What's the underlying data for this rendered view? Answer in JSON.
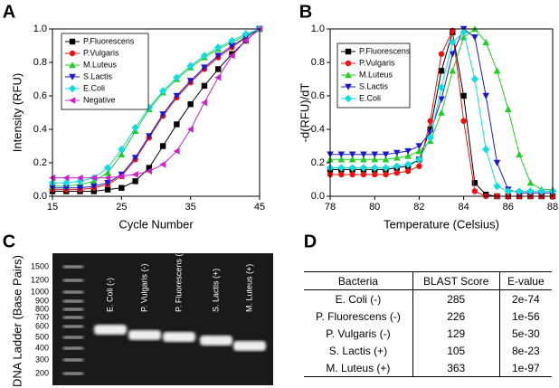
{
  "chart_data": [
    {
      "type": "line",
      "panel_label": "A",
      "xlabel": "Cycle Number",
      "ylabel": "Intensity (RFU)",
      "x": [
        15,
        17,
        19,
        21,
        23,
        25,
        27,
        29,
        31,
        33,
        35,
        37,
        39,
        41,
        43,
        45
      ],
      "xlim": [
        15,
        45
      ],
      "xticks": [
        15,
        25,
        35,
        45
      ],
      "ylim": [
        0,
        1
      ],
      "yticks": [
        {
          "value": 0,
          "label": "0.0"
        },
        0.2,
        0.4,
        0.6,
        0.8,
        {
          "value": 1,
          "label": "1.0"
        }
      ],
      "legend": "upper left",
      "series": [
        {
          "name": "P.Fluorescens",
          "color": "#000000",
          "marker": "square",
          "values": [
            0.03,
            0.03,
            0.03,
            0.03,
            0.04,
            0.05,
            0.09,
            0.17,
            0.3,
            0.43,
            0.55,
            0.66,
            0.76,
            0.85,
            0.93,
            1.0
          ]
        },
        {
          "name": "P.Vulgaris",
          "color": "#ee1111",
          "marker": "circle",
          "values": [
            0.04,
            0.04,
            0.04,
            0.05,
            0.07,
            0.12,
            0.22,
            0.35,
            0.48,
            0.59,
            0.68,
            0.76,
            0.83,
            0.89,
            0.95,
            1.0
          ]
        },
        {
          "name": "M.Luteus",
          "color": "#22cc22",
          "marker": "triangle-up",
          "values": [
            0.06,
            0.06,
            0.07,
            0.09,
            0.14,
            0.25,
            0.39,
            0.52,
            0.62,
            0.7,
            0.77,
            0.83,
            0.88,
            0.92,
            0.96,
            1.0
          ]
        },
        {
          "name": "S.Lactis",
          "color": "#1a1acc",
          "marker": "triangle-down",
          "values": [
            0.05,
            0.05,
            0.05,
            0.06,
            0.08,
            0.13,
            0.23,
            0.36,
            0.49,
            0.6,
            0.69,
            0.77,
            0.84,
            0.9,
            0.95,
            1.0
          ]
        },
        {
          "name": "E.Coli",
          "color": "#11dddd",
          "marker": "diamond",
          "values": [
            0.08,
            0.08,
            0.09,
            0.11,
            0.17,
            0.28,
            0.41,
            0.53,
            0.63,
            0.71,
            0.78,
            0.84,
            0.89,
            0.93,
            0.97,
            1.0
          ]
        },
        {
          "name": "Negative",
          "color": "#cc22cc",
          "marker": "triangle-left",
          "values": [
            0.11,
            0.11,
            0.11,
            0.11,
            0.11,
            0.12,
            0.13,
            0.15,
            0.19,
            0.27,
            0.4,
            0.56,
            0.71,
            0.84,
            0.93,
            1.0
          ]
        }
      ]
    },
    {
      "type": "line",
      "panel_label": "B",
      "xlabel": "Temperature (Celsius)",
      "ylabel": "-d(RFU)/dT",
      "x": [
        78,
        78.5,
        79,
        79.5,
        80,
        80.5,
        81,
        81.5,
        82,
        82.5,
        83,
        83.5,
        84,
        84.5,
        85,
        85.5,
        86,
        86.5,
        87,
        87.5,
        88
      ],
      "xlim": [
        78,
        88
      ],
      "xticks": [
        78,
        80,
        82,
        84,
        86,
        88
      ],
      "ylim": [
        0,
        1
      ],
      "yticks": [
        {
          "value": 0,
          "label": "0.0"
        },
        0.2,
        0.4,
        0.6,
        0.8,
        {
          "value": 1,
          "label": "1.0"
        }
      ],
      "legend": "upper left",
      "series": [
        {
          "name": "P.Fluorescens",
          "color": "#000000",
          "marker": "square",
          "values": [
            0.16,
            0.16,
            0.16,
            0.16,
            0.16,
            0.16,
            0.17,
            0.18,
            0.22,
            0.4,
            0.75,
            0.98,
            0.6,
            0.08,
            0.01,
            0,
            0,
            0,
            0,
            0,
            0
          ]
        },
        {
          "name": "P.Vulgaris",
          "color": "#ee1111",
          "marker": "circle",
          "values": [
            0.13,
            0.13,
            0.13,
            0.13,
            0.13,
            0.13,
            0.14,
            0.15,
            0.18,
            0.45,
            0.85,
            0.99,
            0.45,
            0.03,
            0,
            0,
            0,
            0,
            0,
            0,
            0
          ]
        },
        {
          "name": "M.Luteus",
          "color": "#22cc22",
          "marker": "triangle-up",
          "values": [
            0.22,
            0.22,
            0.22,
            0.22,
            0.22,
            0.22,
            0.23,
            0.24,
            0.27,
            0.33,
            0.5,
            0.75,
            0.95,
            1.0,
            0.92,
            0.75,
            0.52,
            0.25,
            0.08,
            0.04,
            0.04
          ]
        },
        {
          "name": "S.Lactis",
          "color": "#1a1acc",
          "marker": "triangle-down",
          "values": [
            0.25,
            0.25,
            0.25,
            0.25,
            0.25,
            0.25,
            0.26,
            0.27,
            0.3,
            0.38,
            0.58,
            0.85,
            1.0,
            0.95,
            0.6,
            0.2,
            0.04,
            0.02,
            0.02,
            0.02,
            0.02
          ]
        },
        {
          "name": "E.Coli",
          "color": "#11dddd",
          "marker": "diamond",
          "values": [
            0.17,
            0.17,
            0.17,
            0.17,
            0.17,
            0.17,
            0.18,
            0.19,
            0.22,
            0.35,
            0.65,
            0.92,
            0.98,
            0.7,
            0.28,
            0.06,
            0.03,
            0.03,
            0.03,
            0.03,
            0.03
          ]
        }
      ]
    }
  ],
  "gel": {
    "panel_label": "C",
    "ylabel": "DNA Ladder (Base Pairs)",
    "ladder": [
      1500,
      1200,
      1000,
      900,
      800,
      700,
      600,
      500,
      400,
      300,
      200
    ],
    "lanes": [
      "E. Coli (-)",
      "P. Vulgaris (-)",
      "P. Fluorescens (-)",
      "S. Lactis (+)",
      "M. Luteus (+)"
    ]
  },
  "table": {
    "panel_label": "D",
    "header": [
      "Bacteria",
      "BLAST Score",
      "E-value"
    ],
    "rows": [
      [
        "E. Coli (-)",
        285,
        "2e-74"
      ],
      [
        "P. Fluorescens (-)",
        226,
        "1e-56"
      ],
      [
        "P. Vulgaris (-)",
        129,
        "5e-30"
      ],
      [
        "S. Lactis (+)",
        105,
        "8e-23"
      ],
      [
        "M. Luteus (+)",
        363,
        "1e-97"
      ]
    ]
  }
}
